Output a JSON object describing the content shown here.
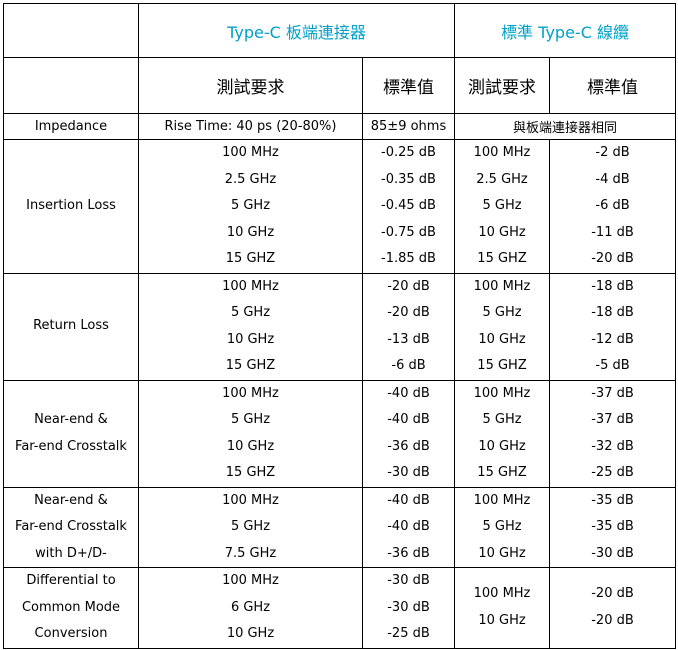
{
  "header": {
    "board_title": "Type-C 板端連接器",
    "cable_title": "標準 Type-C 線纜",
    "test_req": "測試要求",
    "std_value": "標準值"
  },
  "impedance": {
    "label": "Impedance",
    "board_req": "Rise Time: 40 ps (20-80%)",
    "board_val": "85±9 ohms",
    "cable_note": "與板端連接器相同"
  },
  "groups": [
    {
      "label_lines": [
        "Insertion Loss"
      ],
      "board_req": [
        "100 MHz",
        "2.5 GHz",
        "5 GHz",
        "10 GHz",
        "15 GHZ"
      ],
      "board_val": [
        "-0.25 dB",
        "-0.35 dB",
        "-0.45 dB",
        "-0.75 dB",
        "-1.85 dB"
      ],
      "cable_req": [
        "100 MHz",
        "2.5 GHz",
        "5 GHz",
        "10 GHz",
        "15 GHZ"
      ],
      "cable_val": [
        "-2 dB",
        "-4 dB",
        "-6 dB",
        "-11 dB",
        "-20 dB"
      ]
    },
    {
      "label_lines": [
        "Return Loss"
      ],
      "board_req": [
        "100 MHz",
        "5 GHz",
        "10 GHz",
        "15 GHZ"
      ],
      "board_val": [
        "-20 dB",
        "-20 dB",
        "-13 dB",
        "-6 dB"
      ],
      "cable_req": [
        "100 MHz",
        "5 GHz",
        "10 GHz",
        "15 GHZ"
      ],
      "cable_val": [
        "-18 dB",
        "-18 dB",
        "-12 dB",
        "-5 dB"
      ]
    },
    {
      "label_lines": [
        "Near-end &",
        "Far-end Crosstalk"
      ],
      "board_req": [
        "100 MHz",
        "5 GHz",
        "10 GHz",
        "15 GHZ"
      ],
      "board_val": [
        "-40 dB",
        "-40 dB",
        "-36 dB",
        "-30 dB"
      ],
      "cable_req": [
        "100 MHz",
        "5 GHz",
        "10 GHz",
        "15 GHZ"
      ],
      "cable_val": [
        "-37 dB",
        "-37 dB",
        "-32 dB",
        "-25 dB"
      ]
    },
    {
      "label_lines": [
        "Near-end &",
        "Far-end Crosstalk",
        "with D+/D-"
      ],
      "board_req": [
        "100 MHz",
        "5 GHz",
        "7.5 GHz"
      ],
      "board_val": [
        "-40 dB",
        "-40 dB",
        "-36 dB"
      ],
      "cable_req": [
        "100 MHz",
        "5 GHz",
        "10 GHz"
      ],
      "cable_val": [
        "-35 dB",
        "-35 dB",
        "-30 dB"
      ]
    },
    {
      "label_lines": [
        "Differential to",
        "Common Mode",
        "Conversion"
      ],
      "board_req": [
        "100 MHz",
        "6 GHz",
        "10 GHz"
      ],
      "board_val": [
        "-30 dB",
        "-30 dB",
        "-25 dB"
      ],
      "cable_req": [
        "100 MHz",
        "10 GHz"
      ],
      "cable_val": [
        "-20 dB",
        "-20 dB"
      ]
    }
  ]
}
